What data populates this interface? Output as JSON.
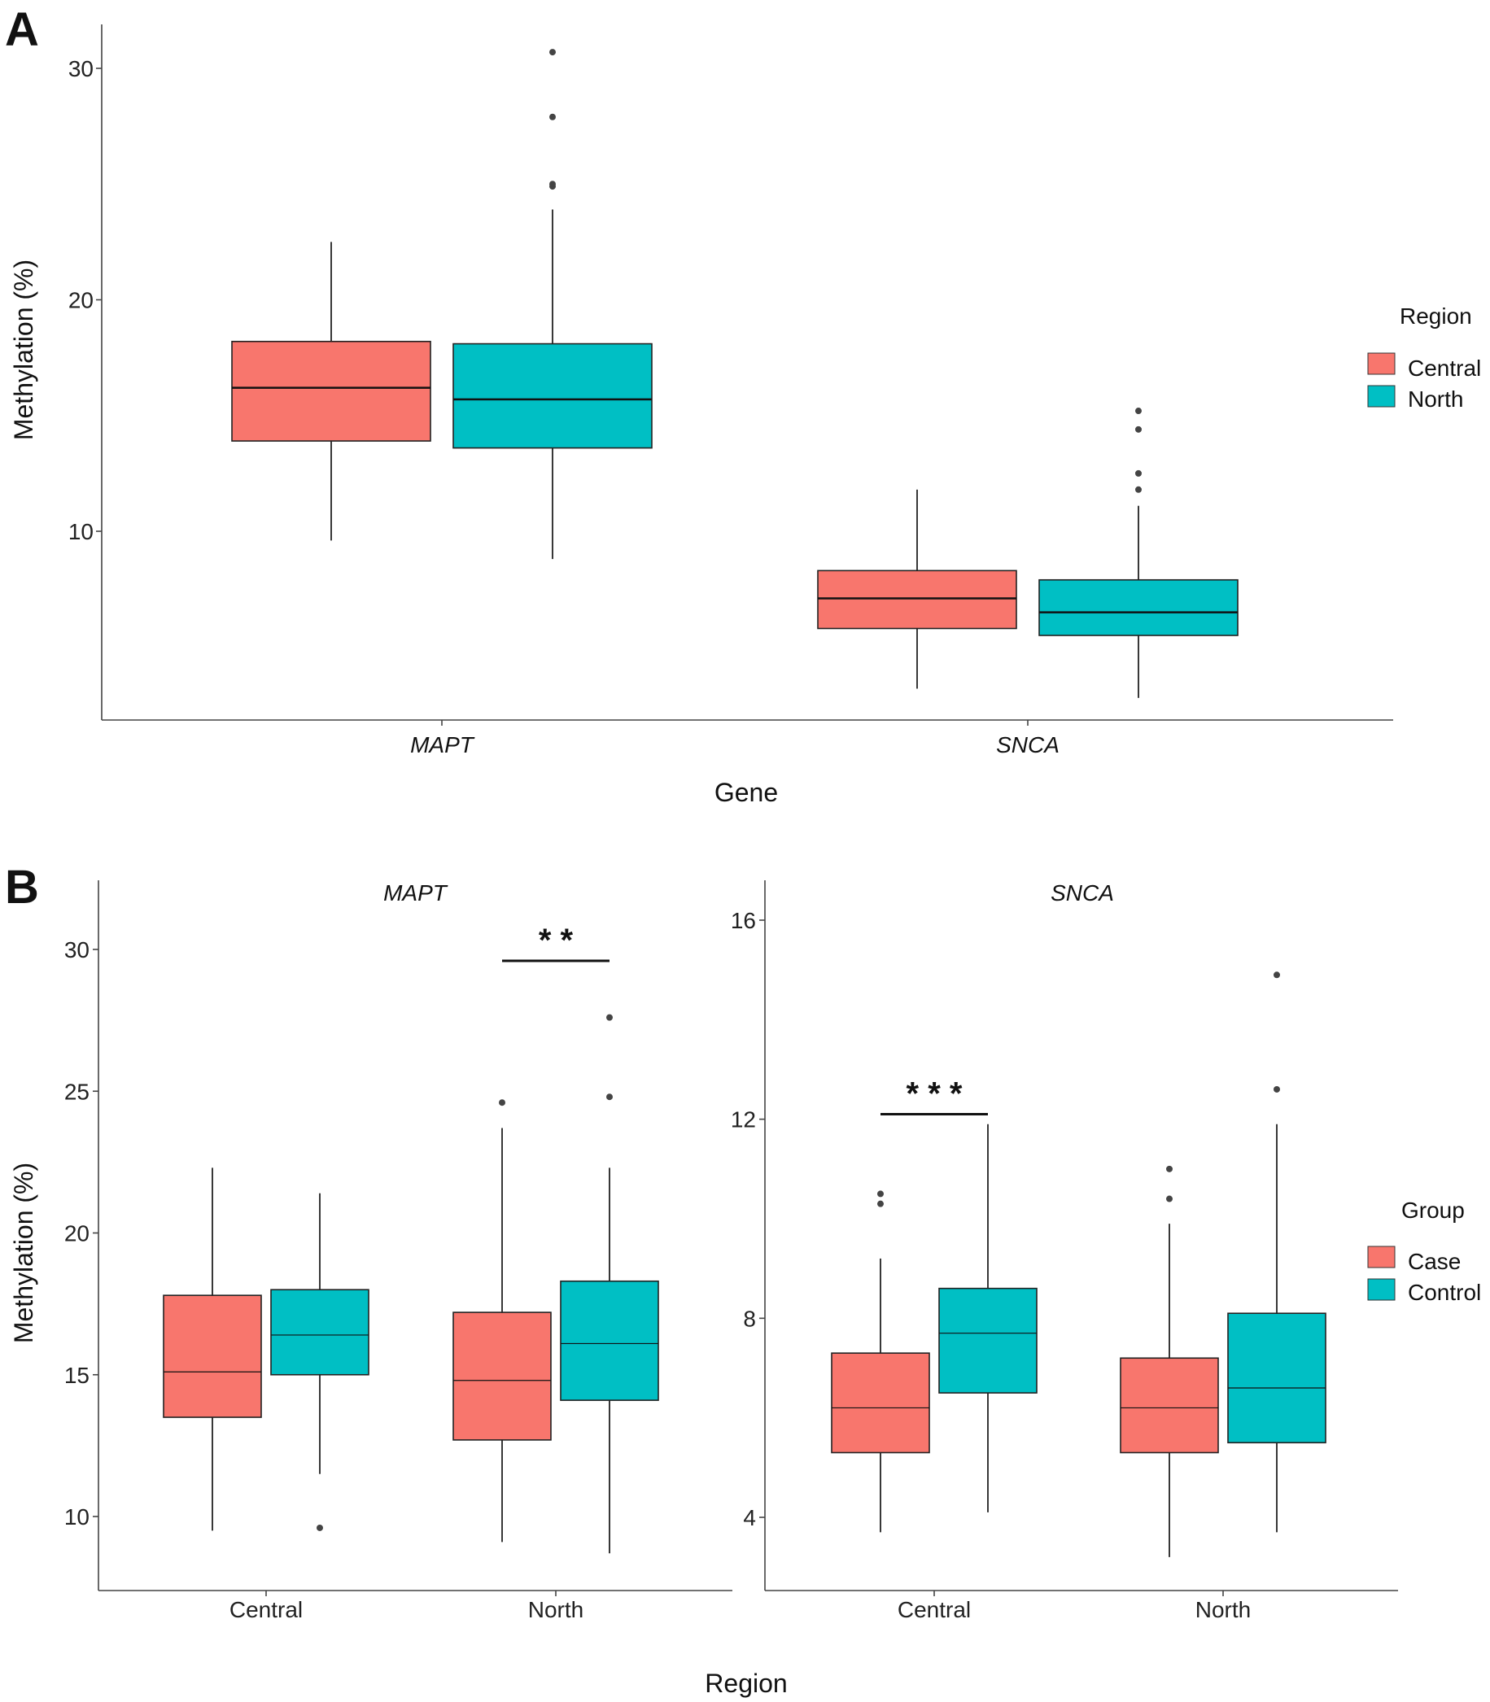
{
  "colors": {
    "central": "#F8766D",
    "north": "#00BFC4",
    "case": "#F8766D",
    "control": "#00BFC4"
  },
  "chart_data": [
    {
      "panel": "A",
      "type": "boxplot",
      "xlabel": "Gene",
      "ylabel": "Methylation (%)",
      "ylim": [
        2,
        32
      ],
      "yticks": [
        10,
        20,
        30
      ],
      "categories": [
        "MAPT",
        "SNCA"
      ],
      "legend": {
        "title": "Region",
        "entries": [
          "Central",
          "North"
        ],
        "position": "right"
      },
      "boxes": [
        {
          "category": "MAPT",
          "group": "Central",
          "min": 9.6,
          "q1": 13.9,
          "median": 16.2,
          "q3": 18.2,
          "max": 22.5,
          "outliers": []
        },
        {
          "category": "MAPT",
          "group": "North",
          "min": 8.8,
          "q1": 13.6,
          "median": 15.7,
          "q3": 18.1,
          "max": 23.9,
          "outliers": [
            24.9,
            25.0,
            27.9,
            30.7
          ]
        },
        {
          "category": "SNCA",
          "group": "Central",
          "min": 3.2,
          "q1": 5.8,
          "median": 7.1,
          "q3": 8.3,
          "max": 11.8,
          "outliers": []
        },
        {
          "category": "SNCA",
          "group": "North",
          "min": 2.8,
          "q1": 5.5,
          "median": 6.5,
          "q3": 7.9,
          "max": 11.1,
          "outliers": [
            11.8,
            12.5,
            14.4,
            15.2
          ]
        }
      ]
    },
    {
      "panel": "B",
      "facet": "MAPT",
      "type": "boxplot",
      "ylabel": "Methylation (%)",
      "ylim": [
        7.5,
        32.5
      ],
      "yticks": [
        10,
        15,
        20,
        25,
        30
      ],
      "categories": [
        "Central",
        "North"
      ],
      "significance": [
        {
          "category": "North",
          "label": "* *",
          "y": 29.6
        }
      ],
      "boxes": [
        {
          "category": "Central",
          "group": "Case",
          "min": 9.5,
          "q1": 13.5,
          "median": 15.1,
          "q3": 17.8,
          "max": 22.3,
          "outliers": []
        },
        {
          "category": "Central",
          "group": "Control",
          "min": 11.5,
          "q1": 15.0,
          "median": 16.4,
          "q3": 18.0,
          "max": 21.4,
          "outliers": [
            9.6
          ]
        },
        {
          "category": "North",
          "group": "Case",
          "min": 9.1,
          "q1": 12.7,
          "median": 14.8,
          "q3": 17.2,
          "max": 23.7,
          "outliers": [
            24.6
          ]
        },
        {
          "category": "North",
          "group": "Control",
          "min": 8.7,
          "q1": 14.1,
          "median": 16.1,
          "q3": 18.3,
          "max": 22.3,
          "outliers": [
            24.8,
            27.6
          ]
        }
      ]
    },
    {
      "panel": "B",
      "facet": "SNCA",
      "type": "boxplot",
      "ylim": [
        2.5,
        17.0
      ],
      "yticks": [
        4,
        8,
        12,
        16
      ],
      "categories": [
        "Central",
        "North"
      ],
      "legend": {
        "title": "Group",
        "entries": [
          "Case",
          "Control"
        ],
        "position": "right"
      },
      "significance": [
        {
          "category": "Central",
          "label": "* * *",
          "y": 12.1
        }
      ],
      "boxes": [
        {
          "category": "Central",
          "group": "Case",
          "min": 3.7,
          "q1": 5.3,
          "median": 6.2,
          "q3": 7.3,
          "max": 9.2,
          "outliers": [
            10.3,
            10.5
          ]
        },
        {
          "category": "Central",
          "group": "Control",
          "min": 4.1,
          "q1": 6.5,
          "median": 7.7,
          "q3": 8.6,
          "max": 11.9,
          "outliers": []
        },
        {
          "category": "North",
          "group": "Case",
          "min": 3.2,
          "q1": 5.3,
          "median": 6.2,
          "q3": 7.2,
          "max": 9.9,
          "outliers": [
            10.4,
            11.0
          ]
        },
        {
          "category": "North",
          "group": "Control",
          "min": 3.7,
          "q1": 5.5,
          "median": 6.6,
          "q3": 8.1,
          "max": 11.9,
          "outliers": [
            12.6,
            14.9
          ]
        }
      ]
    }
  ],
  "labels": {
    "panel_a": "A",
    "panel_b": "B",
    "facet_mapt": "MAPT",
    "facet_snca": "SNCA",
    "xlabel_b": "Region"
  }
}
